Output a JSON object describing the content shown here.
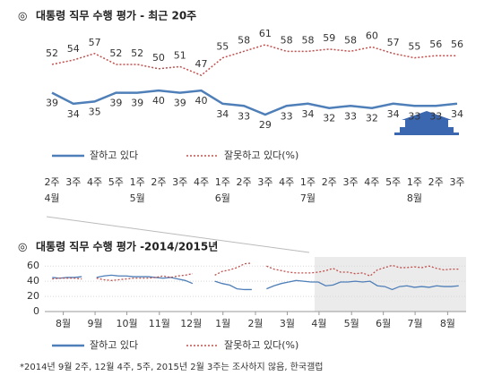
{
  "chart_data": [
    {
      "type": "line",
      "title": "대통령 직무 수행 평가 - 최근 20주",
      "categories": [
        "2주",
        "3주",
        "4주",
        "5주",
        "1주",
        "2주",
        "3주",
        "4주",
        "1주",
        "2주",
        "3주",
        "4주",
        "1주",
        "2주",
        "3주",
        "4주",
        "5주",
        "1주",
        "2주",
        "3주"
      ],
      "months": [
        "4월",
        null,
        null,
        null,
        "5월",
        null,
        null,
        null,
        "6월",
        null,
        null,
        null,
        "7월",
        null,
        null,
        null,
        null,
        "8월",
        null,
        null
      ],
      "series": [
        {
          "name": "잘하고 있다",
          "color": "#4f7fb8",
          "style": "solid",
          "values": [
            39,
            34,
            35,
            39,
            39,
            40,
            39,
            40,
            34,
            33,
            29,
            33,
            34,
            32,
            33,
            32,
            34,
            33,
            33,
            34
          ]
        },
        {
          "name": "잘못하고 있다(%)",
          "color": "#c0504d",
          "style": "dotted",
          "values": [
            52,
            54,
            57,
            52,
            52,
            50,
            51,
            47,
            55,
            58,
            61,
            58,
            58,
            59,
            58,
            60,
            57,
            55,
            56,
            56
          ]
        }
      ]
    },
    {
      "type": "line",
      "title": "대통령 직무 수행 평가 -2014/2015년",
      "x": [
        0,
        1,
        2,
        3,
        4,
        5,
        6,
        7,
        8,
        9,
        10,
        11,
        12,
        13,
        14,
        15,
        16,
        17,
        18,
        19,
        20,
        21,
        22,
        23,
        24,
        25,
        26,
        27,
        28,
        29,
        30,
        31,
        32,
        33,
        34,
        35,
        36,
        37,
        38,
        39,
        40,
        41,
        42,
        43,
        44,
        45,
        46,
        47,
        48,
        49,
        50,
        51,
        52,
        53,
        54,
        55
      ],
      "xlim": [
        -1,
        56
      ],
      "xticks": [
        {
          "value": 1.5,
          "label": "8월"
        },
        {
          "value": 5.8,
          "label": "9월"
        },
        {
          "value": 10.1,
          "label": "10월"
        },
        {
          "value": 14.5,
          "label": "11월"
        },
        {
          "value": 18.8,
          "label": "12월"
        },
        {
          "value": 23.1,
          "label": "1월"
        },
        {
          "value": 27.5,
          "label": "2월"
        },
        {
          "value": 31.8,
          "label": "3월"
        },
        {
          "value": 36.1,
          "label": "4월"
        },
        {
          "value": 40.5,
          "label": "5월"
        },
        {
          "value": 44.8,
          "label": "6월"
        },
        {
          "value": 49.1,
          "label": "7월"
        },
        {
          "value": 53.5,
          "label": "8월"
        }
      ],
      "ylim": [
        0,
        65
      ],
      "yticks": [
        0,
        20,
        40,
        60
      ],
      "series": [
        {
          "name": "잘하고 있다",
          "color": "#4f7fb8",
          "style": "solid",
          "values": [
            45,
            44,
            45,
            45,
            46,
            null,
            45,
            47,
            48,
            47,
            47,
            46,
            46,
            46,
            45,
            44,
            45,
            43,
            41,
            37,
            null,
            null,
            40,
            37,
            35,
            30,
            29,
            29,
            null,
            30,
            34,
            37,
            39,
            41,
            40,
            39,
            39,
            34,
            35,
            39,
            39,
            40,
            39,
            40,
            34,
            33,
            29,
            33,
            34,
            32,
            33,
            32,
            34,
            33,
            33,
            34
          ]
        },
        {
          "name": "잘못하고 있다(%)",
          "color": "#c0504d",
          "style": "dotted",
          "values": [
            43,
            44,
            44,
            44,
            43,
            null,
            44,
            42,
            41,
            42,
            43,
            44,
            44,
            44,
            45,
            47,
            45,
            47,
            48,
            50,
            null,
            null,
            48,
            53,
            55,
            58,
            63,
            64,
            null,
            60,
            56,
            54,
            52,
            51,
            51,
            51,
            52,
            54,
            57,
            52,
            52,
            50,
            51,
            47,
            55,
            58,
            61,
            58,
            58,
            59,
            58,
            60,
            57,
            55,
            56,
            56
          ]
        }
      ]
    }
  ],
  "footnote": "*2014년 9월 2주, 12월 4주, 5주, 2015년 2월 3주는 조사하지 않음, 한국갤럽"
}
